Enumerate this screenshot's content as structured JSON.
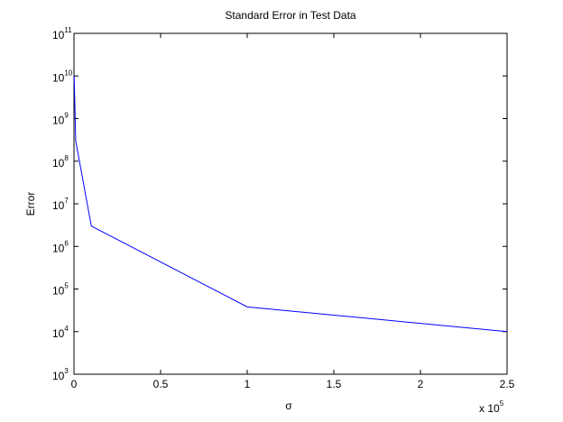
{
  "chart_data": {
    "type": "line",
    "title": "Standard Error in Test Data",
    "x_label": "σ",
    "y_label": "Error",
    "x_multiplier": {
      "label": "x 10",
      "exponent": "5"
    },
    "x": [
      0.001,
      0.01,
      0.1,
      1,
      2.5
    ],
    "series": [
      {
        "name": "Error",
        "color": "#0000ff",
        "values": [
          10000000000,
          300000000,
          3000000,
          38000,
          10000
        ]
      }
    ],
    "xlim": [
      0,
      2.5
    ],
    "xticks": [
      0,
      0.5,
      1,
      1.5,
      2,
      2.5
    ],
    "ylim": [
      1000,
      100000000000
    ],
    "log_y": true,
    "yticks": [
      {
        "value": 1000,
        "label": "10",
        "exponent": "3"
      },
      {
        "value": 10000,
        "label": "10",
        "exponent": "4"
      },
      {
        "value": 100000,
        "label": "10",
        "exponent": "5"
      },
      {
        "value": 1000000,
        "label": "10",
        "exponent": "6"
      },
      {
        "value": 10000000,
        "label": "10",
        "exponent": "7"
      },
      {
        "value": 100000000,
        "label": "10",
        "exponent": "8"
      },
      {
        "value": 1000000000,
        "label": "10",
        "exponent": "9"
      },
      {
        "value": 10000000000,
        "label": "10",
        "exponent": "10"
      },
      {
        "value": 100000000000,
        "label": "10",
        "exponent": "11"
      }
    ]
  }
}
